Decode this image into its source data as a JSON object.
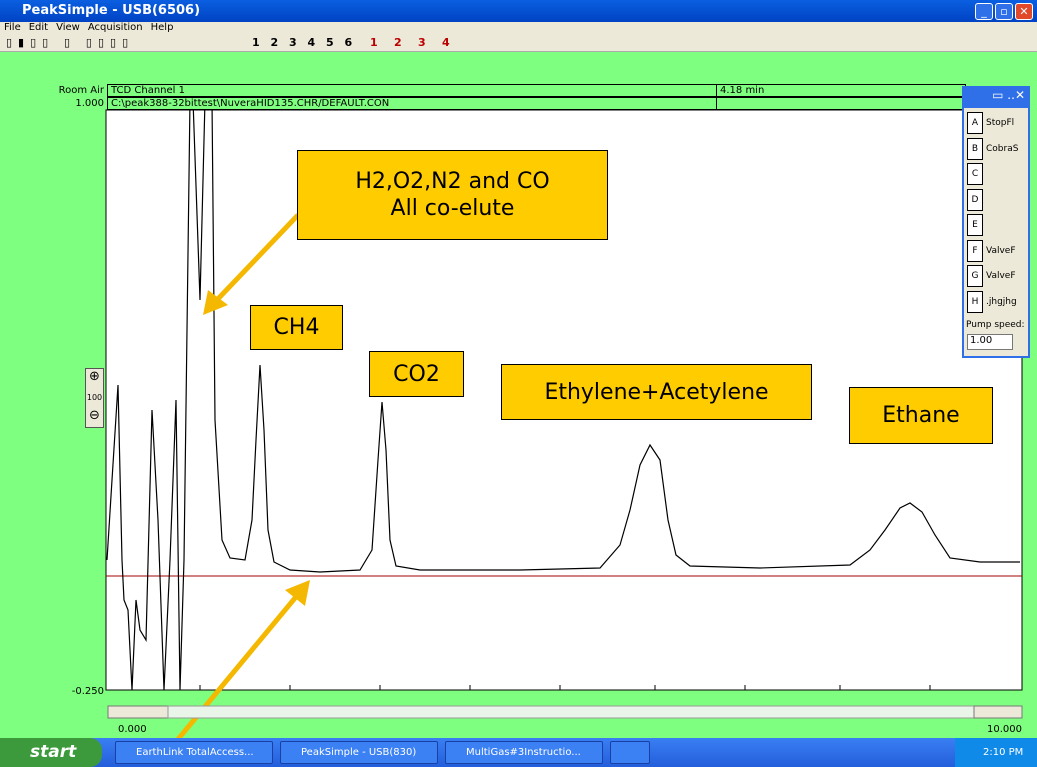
{
  "window": {
    "title": "PeakSimple - USB(6506)"
  },
  "menu": [
    "File",
    "Edit",
    "View",
    "Acquisition",
    "Help"
  ],
  "toolbar": {
    "channels": [
      "1",
      "2",
      "3",
      "4",
      "5",
      "6"
    ],
    "detectors": [
      "1",
      "2",
      "3",
      "4"
    ]
  },
  "header": {
    "sample": "Room Air",
    "channel": "TCD Channel 1",
    "time": "4.18 min",
    "ymax": "1.000",
    "file": "C:\\peak388-32bittest\\NuveraHID135.CHR/DEFAULT.CON"
  },
  "axis": {
    "ymin": "-0.250",
    "xmin": "0.000",
    "xmax": "10.000"
  },
  "zoom": {
    "label": "100"
  },
  "callouts": [
    "H2,O2,N2 and CO\nAll co-elute",
    "CH4",
    "CO2",
    "Ethylene+Acetylene",
    "Ethane"
  ],
  "panel": {
    "keys": [
      "A",
      "B",
      "C",
      "D",
      "E",
      "F",
      "G",
      "H"
    ],
    "labels": [
      "StopFl",
      "CobraS",
      "",
      "",
      "",
      "ValveF",
      "ValveF",
      ".jhgjhg"
    ],
    "pump_label": "Pump speed:",
    "pump_value": "1.00"
  },
  "taskbar": {
    "start": "start",
    "tasks": [
      "EarthLink TotalAccess...",
      "PeakSimple - USB(830)",
      "MultiGas#3Instructio..."
    ],
    "clock": "2:10 PM"
  }
}
